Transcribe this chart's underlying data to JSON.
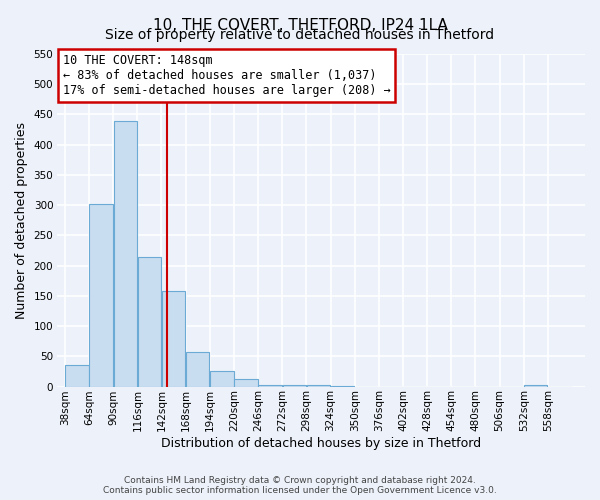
{
  "title": "10, THE COVERT, THETFORD, IP24 1LA",
  "subtitle": "Size of property relative to detached houses in Thetford",
  "xlabel": "Distribution of detached houses by size in Thetford",
  "ylabel": "Number of detached properties",
  "bin_edges": [
    38,
    64,
    90,
    116,
    142,
    168,
    194,
    220,
    246,
    272,
    298,
    324,
    350,
    376,
    402,
    428,
    454,
    480,
    506,
    532,
    558,
    584
  ],
  "bar_heights": [
    35,
    302,
    440,
    215,
    158,
    57,
    26,
    12,
    2,
    3,
    2,
    1,
    0,
    0,
    0,
    0,
    0,
    0,
    0,
    2,
    0
  ],
  "bar_color": "#c9ddf0",
  "bar_edge_color": "#6aaad4",
  "vline_x": 148,
  "vline_color": "#cc0000",
  "annotation_title": "10 THE COVERT: 148sqm",
  "annotation_line1": "← 83% of detached houses are smaller (1,037)",
  "annotation_line2": "17% of semi-detached houses are larger (208) →",
  "annotation_box_color": "#ffffff",
  "annotation_box_edge_color": "#cc0000",
  "ylim": [
    0,
    550
  ],
  "yticks": [
    0,
    50,
    100,
    150,
    200,
    250,
    300,
    350,
    400,
    450,
    500,
    550
  ],
  "footer_line1": "Contains HM Land Registry data © Crown copyright and database right 2024.",
  "footer_line2": "Contains public sector information licensed under the Open Government Licence v3.0.",
  "background_color": "#edf1f9",
  "grid_color": "#ffffff",
  "title_fontsize": 11,
  "subtitle_fontsize": 10,
  "axis_label_fontsize": 9,
  "tick_fontsize": 7.5,
  "footer_fontsize": 6.5,
  "annotation_fontsize": 8.5
}
